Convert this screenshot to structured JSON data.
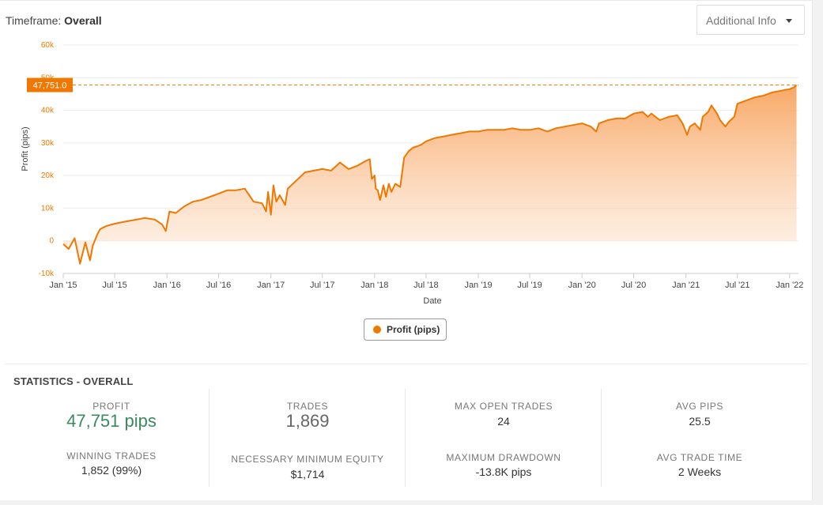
{
  "header": {
    "timeframe_label": "Timeframe:",
    "timeframe_value": "Overall",
    "additional_info_label": "Additional Info",
    "caret_icon": "caret-down-icon"
  },
  "chart_data": {
    "type": "area",
    "series": [
      {
        "name": "Profit (pips)",
        "color": "#f07800",
        "x": [
          "2015-01-01",
          "2015-01-20",
          "2015-02-10",
          "2015-03-01",
          "2015-03-20",
          "2015-04-05",
          "2015-04-15",
          "2015-05-01",
          "2015-05-10",
          "2015-05-20",
          "2015-06-01",
          "2015-06-20",
          "2015-07-15",
          "2015-08-15",
          "2015-09-15",
          "2015-10-15",
          "2015-11-20",
          "2015-12-15",
          "2015-12-28",
          "2016-01-10",
          "2016-02-01",
          "2016-03-01",
          "2016-04-01",
          "2016-05-01",
          "2016-06-01",
          "2016-07-01",
          "2016-08-01",
          "2016-09-01",
          "2016-10-01",
          "2016-11-01",
          "2016-12-01",
          "2016-12-15",
          "2016-12-22",
          "2017-01-01",
          "2017-01-10",
          "2017-01-20",
          "2017-02-01",
          "2017-02-20",
          "2017-03-01",
          "2017-04-01",
          "2017-05-01",
          "2017-06-01",
          "2017-07-01",
          "2017-08-01",
          "2017-09-01",
          "2017-10-01",
          "2017-11-01",
          "2017-12-01",
          "2017-12-15",
          "2017-12-22",
          "2018-01-01",
          "2018-01-05",
          "2018-01-12",
          "2018-01-20",
          "2018-02-01",
          "2018-02-10",
          "2018-02-20",
          "2018-03-01",
          "2018-03-15",
          "2018-04-01",
          "2018-04-15",
          "2018-05-01",
          "2018-05-15",
          "2018-06-01",
          "2018-06-15",
          "2018-07-01",
          "2018-08-01",
          "2018-09-01",
          "2018-10-01",
          "2018-11-01",
          "2018-12-01",
          "2019-01-01",
          "2019-02-01",
          "2019-03-01",
          "2019-04-01",
          "2019-05-01",
          "2019-06-01",
          "2019-07-01",
          "2019-08-01",
          "2019-09-01",
          "2019-10-01",
          "2019-11-01",
          "2019-12-01",
          "2020-01-01",
          "2020-02-01",
          "2020-02-20",
          "2020-03-01",
          "2020-04-01",
          "2020-05-01",
          "2020-06-01",
          "2020-07-01",
          "2020-08-01",
          "2020-08-20",
          "2020-09-01",
          "2020-10-01",
          "2020-11-01",
          "2020-12-01",
          "2020-12-20",
          "2021-01-05",
          "2021-01-15",
          "2021-02-01",
          "2021-02-20",
          "2021-03-01",
          "2021-03-20",
          "2021-04-01",
          "2021-04-20",
          "2021-05-01",
          "2021-05-20",
          "2021-06-01",
          "2021-06-20",
          "2021-07-01",
          "2021-08-01",
          "2021-09-01",
          "2021-10-01",
          "2021-11-01",
          "2021-12-01",
          "2022-01-01",
          "2022-01-15",
          "2022-01-25"
        ],
        "y": [
          -1000,
          -2500,
          800,
          -7000,
          -500,
          -6000,
          -1500,
          2000,
          3500,
          4000,
          4500,
          5000,
          5500,
          6000,
          6500,
          7000,
          6500,
          5000,
          3000,
          9000,
          8500,
          10500,
          12000,
          12500,
          13500,
          14500,
          15500,
          15500,
          16000,
          12000,
          11500,
          9000,
          15000,
          8000,
          17000,
          12000,
          14000,
          11000,
          16000,
          18500,
          21000,
          21500,
          22000,
          21500,
          24000,
          22000,
          23000,
          24500,
          25000,
          19000,
          20000,
          16000,
          15500,
          12500,
          17000,
          13500,
          17500,
          15000,
          17500,
          16500,
          25500,
          27500,
          28500,
          29000,
          29500,
          30500,
          31500,
          32000,
          32500,
          33000,
          33500,
          33500,
          34000,
          34000,
          34000,
          34500,
          34000,
          34000,
          34500,
          33500,
          34500,
          35000,
          35500,
          36000,
          35000,
          33500,
          36000,
          37000,
          37500,
          37500,
          39000,
          39500,
          38000,
          39000,
          37000,
          38000,
          38500,
          36000,
          32500,
          35000,
          36000,
          34000,
          38000,
          39500,
          41500,
          39000,
          37000,
          35000,
          36500,
          38000,
          42000,
          43000,
          44000,
          44500,
          45500,
          46000,
          46500,
          47000,
          47751
        ]
      }
    ],
    "xlabel": "Date",
    "ylabel": "Profit (pips)",
    "x_range": [
      "2015-01-01",
      "2022-02-01"
    ],
    "x_ticks": [
      "Jan '15",
      "Jul '15",
      "Jan '16",
      "Jul '16",
      "Jan '17",
      "Jul '17",
      "Jan '18",
      "Jul '18",
      "Jan '19",
      "Jul '19",
      "Jan '20",
      "Jul '20",
      "Jan '21",
      "Jul '21",
      "Jan '22"
    ],
    "x_tick_dates": [
      "2015-01-01",
      "2015-07-01",
      "2016-01-01",
      "2016-07-01",
      "2017-01-01",
      "2017-07-01",
      "2018-01-01",
      "2018-07-01",
      "2019-01-01",
      "2019-07-01",
      "2020-01-01",
      "2020-07-01",
      "2021-01-01",
      "2021-07-01",
      "2022-01-01"
    ],
    "y_ticks": [
      "60k",
      "50k",
      "40k",
      "30k",
      "20k",
      "10k",
      "0",
      "-10k"
    ],
    "ylim": [
      -10000,
      60000
    ],
    "y_tick_values": [
      60000,
      50000,
      40000,
      30000,
      20000,
      10000,
      0,
      -10000
    ],
    "grid": true,
    "last_value_label": "47,751.0",
    "last_value": 47751,
    "legend": {
      "label": "Profit (pips)",
      "placement": "bottom-center"
    }
  },
  "statistics": {
    "title": "STATISTICS - OVERALL",
    "cols": [
      {
        "top_label": "PROFIT",
        "top_value": "47,751 pips",
        "bottom_label": "WINNING TRADES",
        "bottom_value": "1,852 (99%)"
      },
      {
        "top_label": "TRADES",
        "top_value": "1,869",
        "bottom_label": "NECESSARY MINIMUM EQUITY",
        "bottom_value": "$1,714"
      },
      {
        "top_label": "MAX OPEN TRADES",
        "top_value": "24",
        "bottom_label": "MAXIMUM DRAWDOWN",
        "bottom_value": "-13.8K pips"
      },
      {
        "top_label": "AVG PIPS",
        "top_value": "25.5",
        "bottom_label": "AVG TRADE TIME",
        "bottom_value": "2 Weeks"
      }
    ]
  }
}
